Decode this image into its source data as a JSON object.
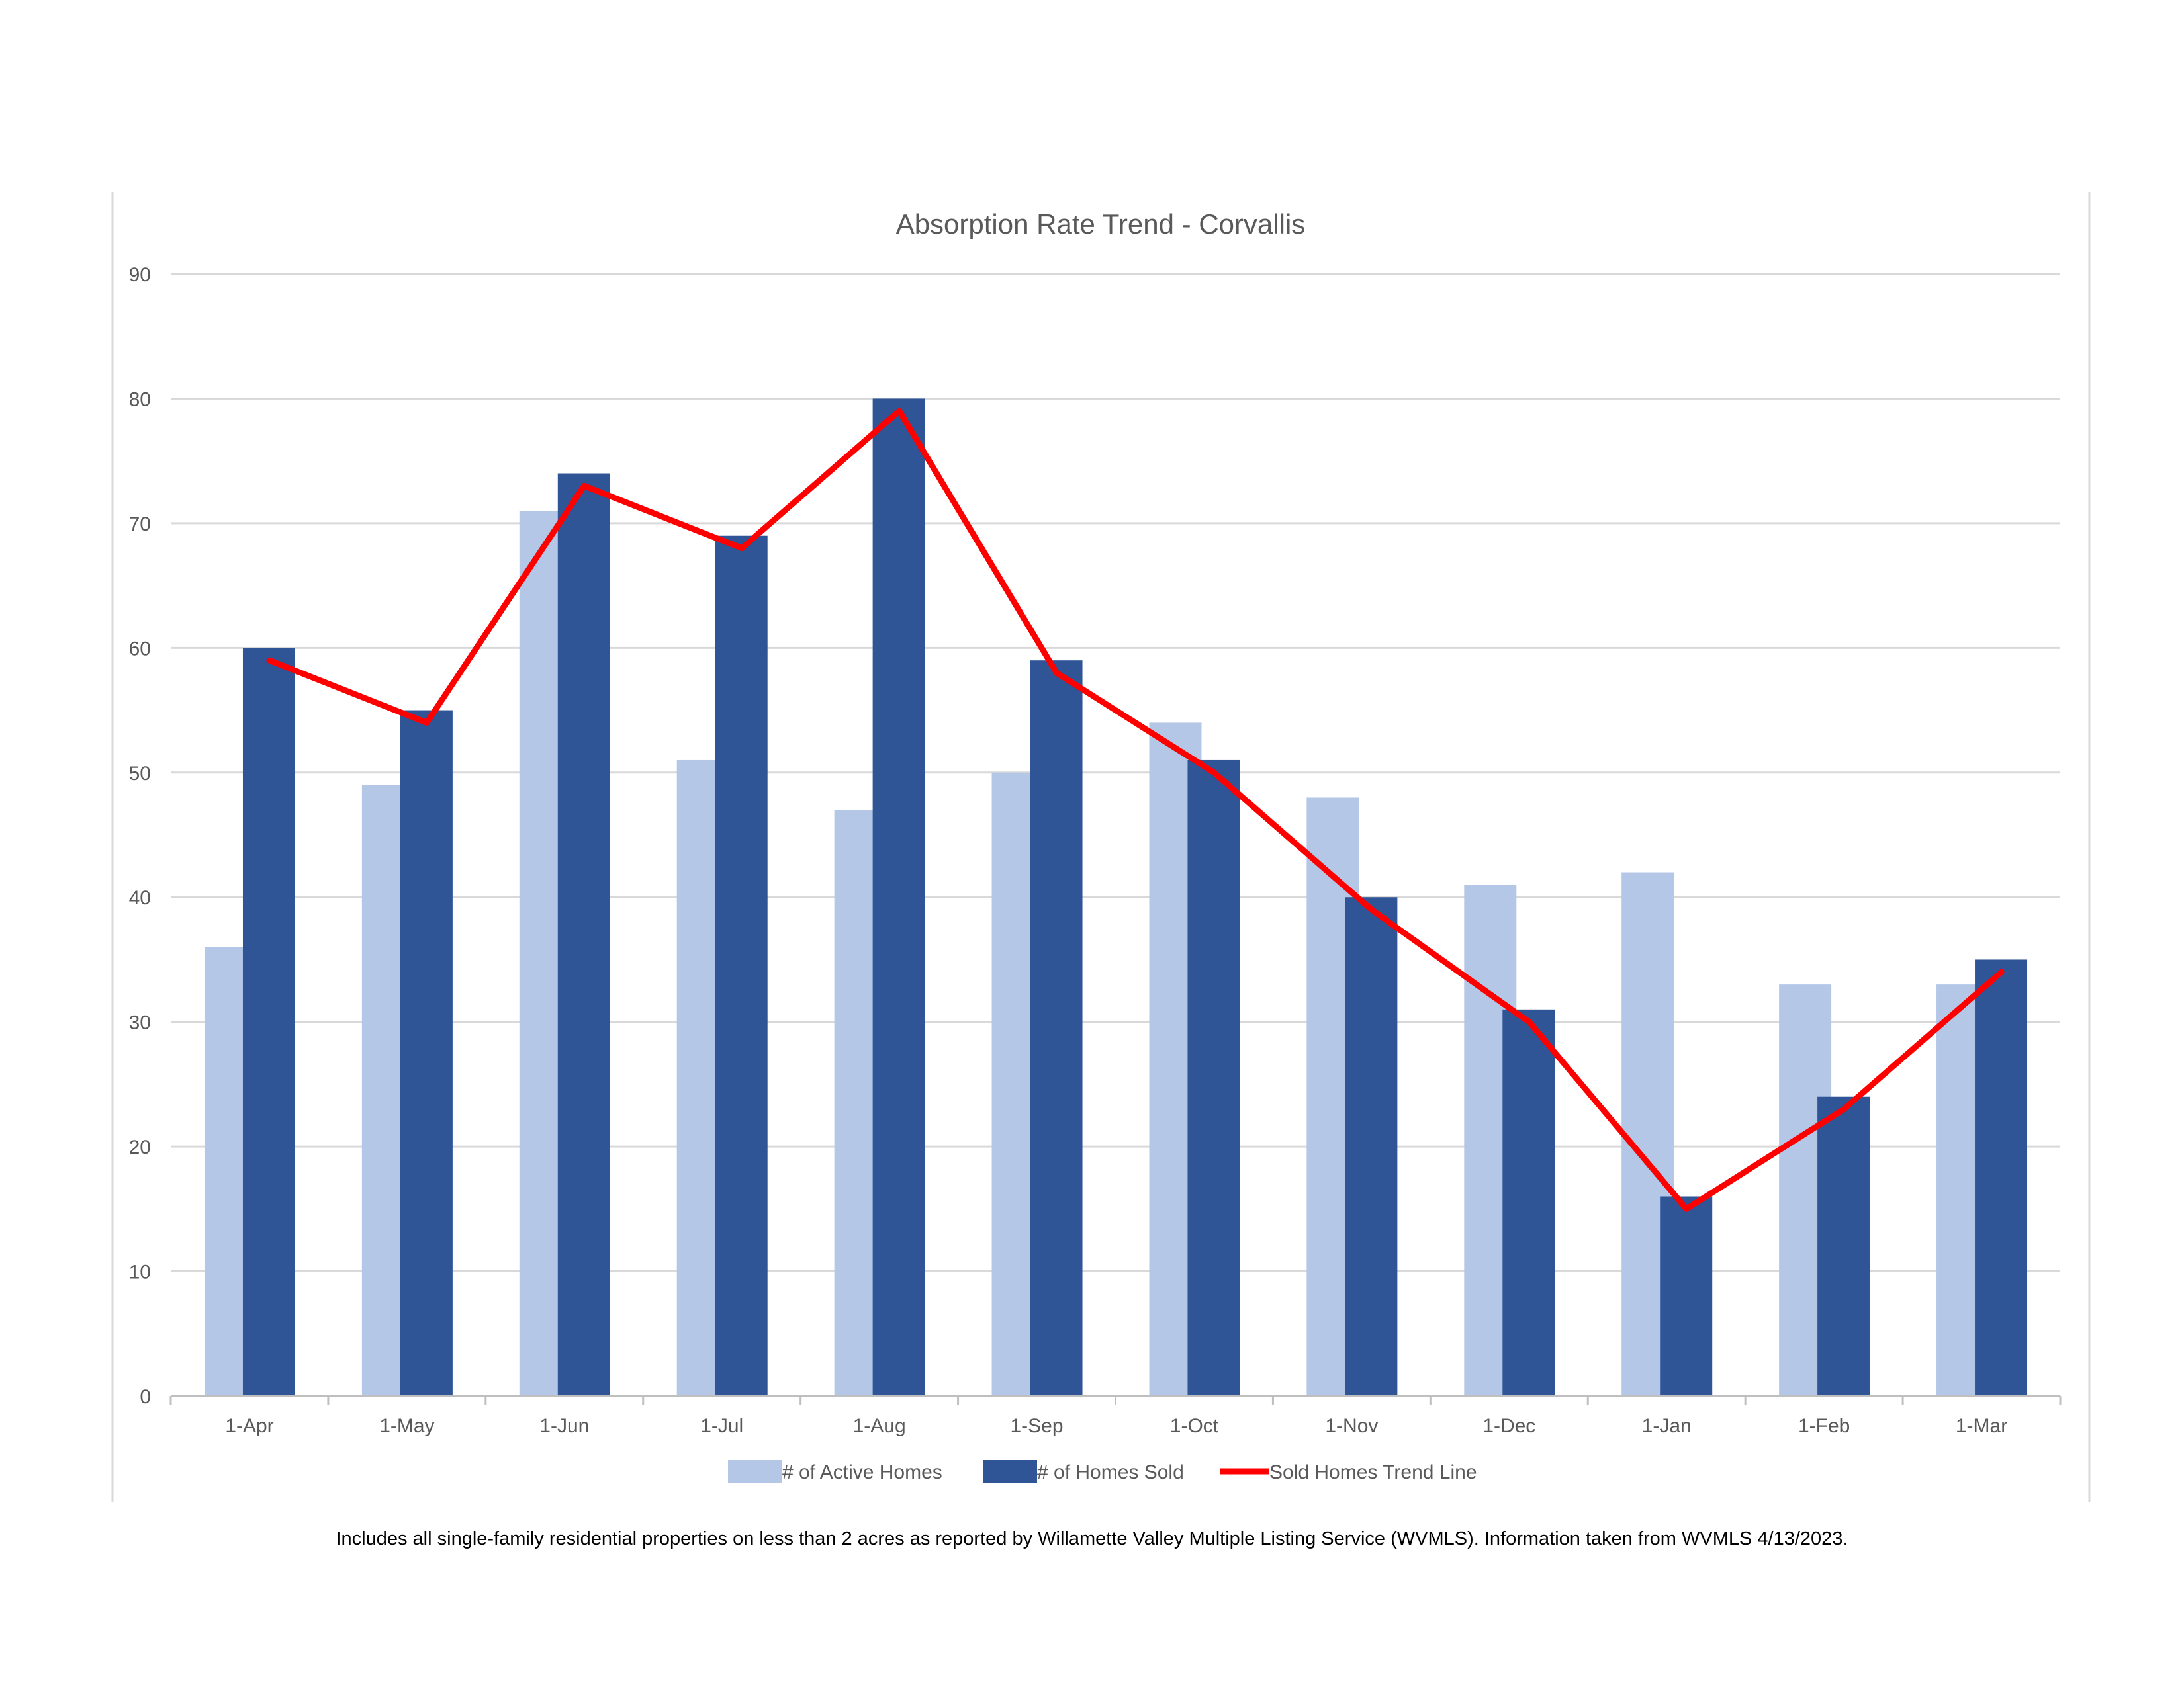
{
  "chart_data": {
    "type": "bar",
    "title": "Absorption Rate Trend - Corvallis",
    "categories": [
      "1-Apr",
      "1-May",
      "1-Jun",
      "1-Jul",
      "1-Aug",
      "1-Sep",
      "1-Oct",
      "1-Nov",
      "1-Dec",
      "1-Jan",
      "1-Feb",
      "1-Mar"
    ],
    "series": [
      {
        "name": "# of Active Homes",
        "type": "bar",
        "color": "#b4c7e7",
        "values": [
          36,
          49,
          71,
          51,
          47,
          50,
          54,
          48,
          41,
          42,
          33,
          33
        ]
      },
      {
        "name": "# of Homes Sold",
        "type": "bar",
        "color": "#2f5597",
        "values": [
          60,
          55,
          74,
          69,
          80,
          59,
          51,
          40,
          31,
          16,
          24,
          35
        ]
      },
      {
        "name": "Sold Homes Trend Line",
        "type": "line",
        "color": "#ff0000",
        "values": [
          59,
          54,
          73,
          68,
          79,
          58,
          50,
          39,
          30,
          15,
          23,
          34
        ]
      }
    ],
    "ylim": [
      0,
      90
    ],
    "yticks": [
      0,
      10,
      20,
      30,
      40,
      50,
      60,
      70,
      80,
      90
    ],
    "grid": true,
    "legend": "bottom"
  },
  "footnote": "Includes all single-family residential properties on less than 2 acres as reported by Willamette Valley Multiple Listing Service (WVMLS). Information taken from WVMLS 4/13/2023."
}
